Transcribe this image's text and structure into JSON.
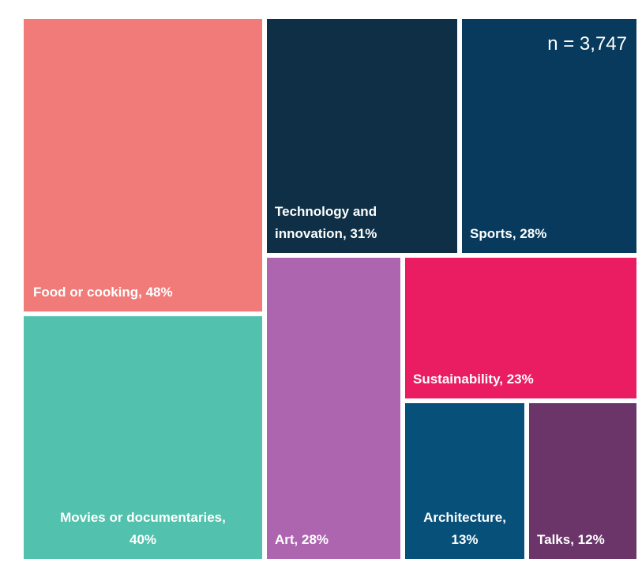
{
  "chart_data": {
    "type": "treemap",
    "title": "",
    "sample_size": "n = 3,747",
    "items": [
      {
        "key": "food",
        "category": "Food or cooking",
        "value": 48,
        "unit": "%",
        "label": "Food or cooking, 48%",
        "color": "#f07b78"
      },
      {
        "key": "movies",
        "category": "Movies or documentaries",
        "value": 40,
        "unit": "%",
        "label": "Movies or documentaries, 40%",
        "label_lines": [
          "Movies or documentaries,",
          "40%"
        ],
        "color": "#52c1ad"
      },
      {
        "key": "technology",
        "category": "Technology and innovation",
        "value": 31,
        "unit": "%",
        "label": "Technology and innovation, 31%",
        "label_lines": [
          "Technology and",
          "innovation, 31%"
        ],
        "color": "#0e2f45"
      },
      {
        "key": "sports",
        "category": "Sports",
        "value": 28,
        "unit": "%",
        "label": "Sports, 28%",
        "color": "#073a5d"
      },
      {
        "key": "art",
        "category": "Art",
        "value": 28,
        "unit": "%",
        "label": "Art, 28%",
        "color": "#ae65b0"
      },
      {
        "key": "sustainability",
        "category": "Sustainability",
        "value": 23,
        "unit": "%",
        "label": "Sustainability, 23%",
        "color": "#ea1c62"
      },
      {
        "key": "architecture",
        "category": "Architecture",
        "value": 13,
        "unit": "%",
        "label": "Architecture, 13%",
        "label_lines": [
          "Architecture,",
          "13%"
        ],
        "color": "#07507a"
      },
      {
        "key": "talks",
        "category": "Talks",
        "value": 12,
        "unit": "%",
        "label": "Talks, 12%",
        "color": "#6b3569"
      }
    ]
  }
}
